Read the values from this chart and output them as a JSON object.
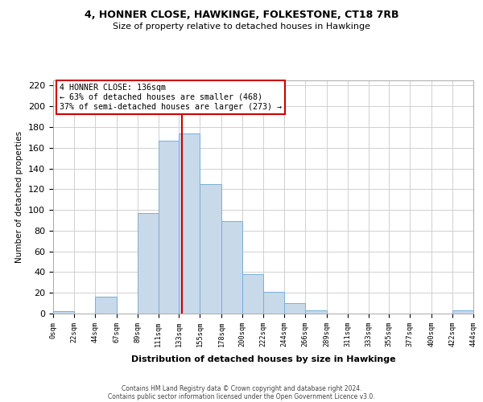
{
  "title": "4, HONNER CLOSE, HAWKINGE, FOLKESTONE, CT18 7RB",
  "subtitle": "Size of property relative to detached houses in Hawkinge",
  "xlabel": "Distribution of detached houses by size in Hawkinge",
  "ylabel": "Number of detached properties",
  "bin_edges": [
    0,
    22,
    44,
    67,
    89,
    111,
    133,
    155,
    178,
    200,
    222,
    244,
    266,
    289,
    311,
    333,
    355,
    377,
    400,
    422,
    444
  ],
  "bin_counts": [
    2,
    0,
    16,
    0,
    97,
    167,
    174,
    125,
    89,
    38,
    21,
    10,
    3,
    0,
    0,
    0,
    0,
    0,
    0,
    3
  ],
  "bar_color": "#c8d9ea",
  "bar_edge_color": "#7aafd4",
  "property_line_x": 136,
  "property_line_color": "#cc0000",
  "annotation_title": "4 HONNER CLOSE: 136sqm",
  "annotation_line1": "← 63% of detached houses are smaller (468)",
  "annotation_line2": "37% of semi-detached houses are larger (273) →",
  "annotation_box_color": "#cc0000",
  "ylim": [
    0,
    225
  ],
  "yticks": [
    0,
    20,
    40,
    60,
    80,
    100,
    120,
    140,
    160,
    180,
    200,
    220
  ],
  "tick_labels": [
    "0sqm",
    "22sqm",
    "44sqm",
    "67sqm",
    "89sqm",
    "111sqm",
    "133sqm",
    "155sqm",
    "178sqm",
    "200sqm",
    "222sqm",
    "244sqm",
    "266sqm",
    "289sqm",
    "311sqm",
    "333sqm",
    "355sqm",
    "377sqm",
    "400sqm",
    "422sqm",
    "444sqm"
  ],
  "footnote1": "Contains HM Land Registry data © Crown copyright and database right 2024.",
  "footnote2": "Contains public sector information licensed under the Open Government Licence v3.0.",
  "background_color": "#ffffff",
  "grid_color": "#d0d0d0"
}
